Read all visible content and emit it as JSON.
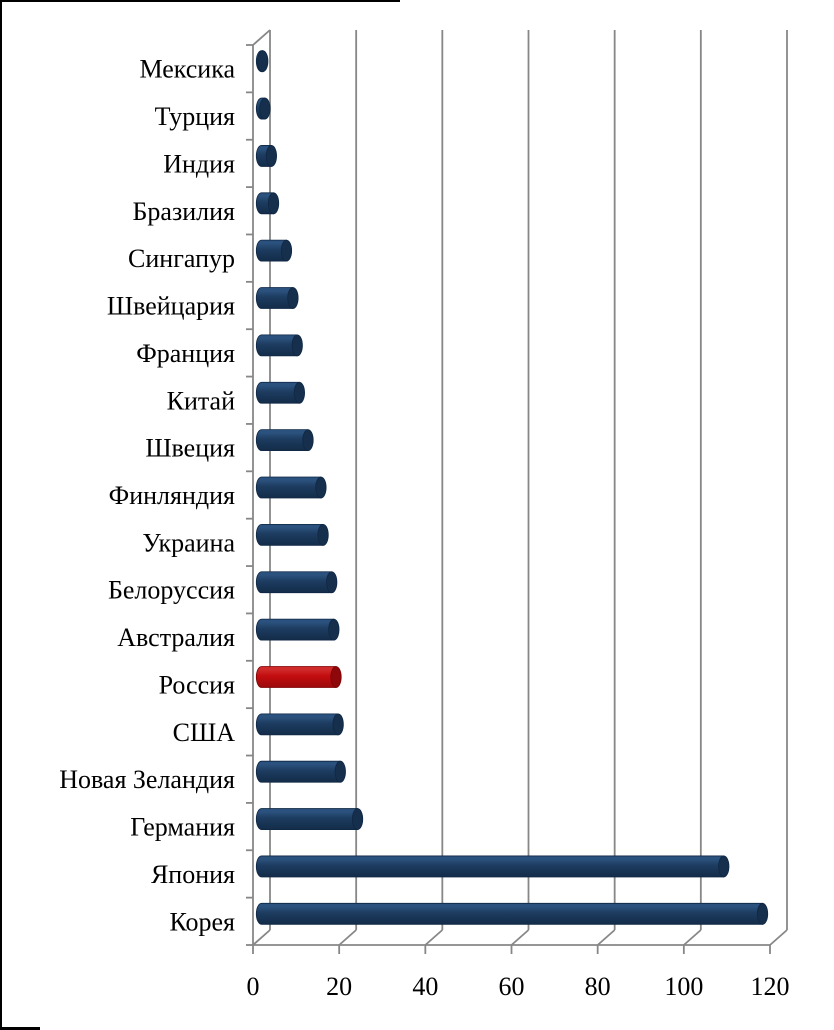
{
  "window": {
    "background": "#ffffff",
    "border_color": "#000000"
  },
  "chart_data": {
    "type": "bar",
    "orientation": "horizontal",
    "style": "3d-cylinder",
    "title": "",
    "categories": [
      "Мексика",
      "Турция",
      "Индия",
      "Бразилия",
      "Сингапур",
      "Швейцария",
      "Франция",
      "Китай",
      "Швеция",
      "Финляндия",
      "Украина",
      "Белоруссия",
      "Австралия",
      "Россия",
      "США",
      "Новая Зеландия",
      "Германия",
      "Япония",
      "Корея"
    ],
    "values": [
      1.5,
      2,
      3.5,
      4,
      7,
      8.5,
      9.5,
      10,
      12,
      15,
      15.5,
      17.5,
      18,
      18.5,
      19,
      19.5,
      23.5,
      108.5,
      117.5
    ],
    "highlighted_category": "Россия",
    "x_ticks": [
      "0",
      "20",
      "40",
      "60",
      "80",
      "100",
      "120"
    ],
    "xlim": [
      0,
      120
    ],
    "grid": true,
    "legend": "none",
    "colors": {
      "bar_body": "#1D3C60",
      "bar_body_light": "#2B527E",
      "bar_body_dark": "#132C49",
      "bar_cap": "#152F4C",
      "bar_stroke": "#0F2744",
      "highlight_body": "#C30D0F",
      "highlight_body_light": "#D02A2A",
      "highlight_body_dark": "#9B0A0C",
      "highlight_cap": "#8E070A",
      "highlight_stroke": "#7C0305",
      "axis": "#878787",
      "text": "#000000"
    }
  }
}
